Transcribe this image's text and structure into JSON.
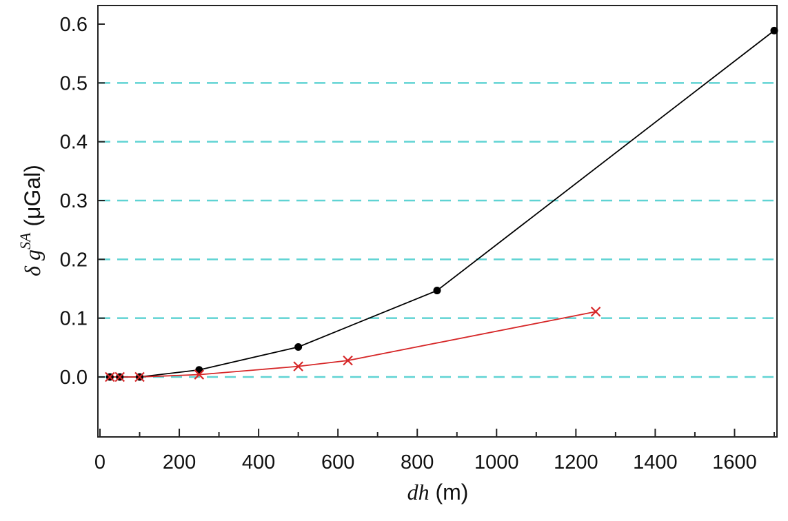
{
  "chart_data": {
    "type": "line",
    "title": "",
    "xlabel": {
      "italic": "dh",
      "rest": " (m)"
    },
    "ylabel": {
      "symbol": "δ",
      "var": "g",
      "sup": "SA",
      "rest": " (μGal)"
    },
    "xlim": [
      0,
      1720
    ],
    "ylim": [
      -0.1,
      0.6
    ],
    "x_ticks": [
      0,
      200,
      400,
      600,
      800,
      1000,
      1200,
      1400,
      1600
    ],
    "x_ticks_minor": [
      100,
      300,
      500,
      700,
      900,
      1100,
      1300,
      1500,
      1700
    ],
    "y_ticks": [
      0.0,
      0.1,
      0.2,
      0.3,
      0.4,
      0.5,
      0.6
    ],
    "y_tick_labels": [
      "0.0",
      "0.1",
      "0.2",
      "0.3",
      "0.4",
      "0.5",
      "0.6"
    ],
    "gridlines_dashed": [
      0.0,
      0.1,
      0.2,
      0.3,
      0.4,
      0.5
    ],
    "grid_color": "#5fd3d3",
    "series": [
      {
        "marker": "circle",
        "color": "#000000",
        "x": [
          25,
          50,
          100,
          250,
          500,
          850,
          1700
        ],
        "y": [
          0.0,
          0.0,
          0.0,
          0.012,
          0.051,
          0.147,
          0.589
        ]
      },
      {
        "marker": "x",
        "color": "#d62728",
        "x": [
          25,
          50,
          100,
          250,
          500,
          625,
          1250
        ],
        "y": [
          0.0,
          0.0,
          0.0,
          0.004,
          0.018,
          0.028,
          0.111
        ]
      }
    ]
  }
}
